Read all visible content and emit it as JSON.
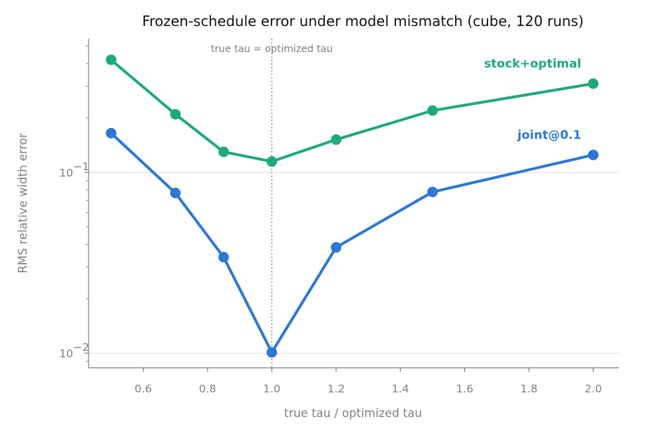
{
  "chart_data": {
    "type": "line",
    "title": "Frozen-schedule error under model mismatch (cube, 120 runs)",
    "xlabel": "true tau / optimized tau",
    "ylabel": "RMS relative width error",
    "x_scale": "linear",
    "y_scale": "log",
    "xlim": [
      0.43,
      2.08
    ],
    "ylim": [
      0.0083,
      0.55
    ],
    "x_ticks": [
      0.6,
      0.8,
      1.0,
      1.2,
      1.4,
      1.6,
      1.8,
      2.0
    ],
    "x_tick_labels": [
      "0.6",
      "0.8",
      "1.0",
      "1.2",
      "1.4",
      "1.6",
      "1.8",
      "2.0"
    ],
    "y_major_ticks": [
      0.01,
      0.1
    ],
    "y_tick_labels": [
      {
        "base": "10",
        "exp": "−2"
      },
      {
        "base": "10",
        "exp": "−1"
      }
    ],
    "grid": "horizontal at major y ticks",
    "reference_line": {
      "x": 1.0,
      "label": "true tau = optimized tau"
    },
    "series": [
      {
        "name": "stock+optimal",
        "color": "#1faa78",
        "x": [
          0.5,
          0.7,
          0.85,
          1.0,
          1.2,
          1.5,
          2.0
        ],
        "y": [
          0.42,
          0.21,
          0.13,
          0.115,
          0.152,
          0.22,
          0.31
        ]
      },
      {
        "name": "joint@0.1",
        "color": "#2e78d2",
        "x": [
          0.5,
          0.7,
          0.85,
          1.0,
          1.2,
          1.5,
          2.0
        ],
        "y": [
          0.165,
          0.077,
          0.034,
          0.0101,
          0.0385,
          0.078,
          0.125
        ]
      }
    ]
  }
}
